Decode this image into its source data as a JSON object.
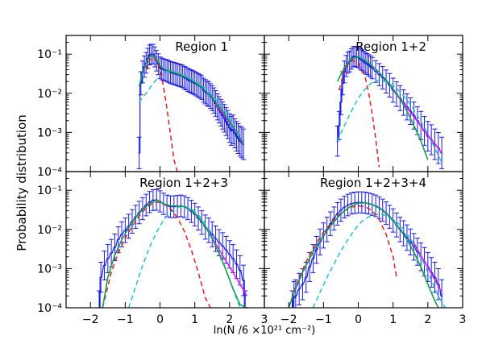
{
  "figure": {
    "ylabel": "Probability distribution",
    "xlabel": "ln(N /6 ×10²¹ cm⁻²)"
  },
  "chart_data": {
    "type": "line",
    "y_scale": "log",
    "ylim": [
      0.0001,
      0.3
    ],
    "y_ticks": [
      0.0001,
      0.001,
      0.01,
      0.1
    ],
    "y_tick_labels": [
      "10⁻⁴",
      "10⁻³",
      "10⁻²",
      "10⁻¹"
    ],
    "xlim": [
      -2.7,
      3.0
    ],
    "x_ticks": [
      -2,
      -1,
      0,
      1,
      2,
      3
    ],
    "x_tick_labels": [
      "−2",
      "−1",
      "0",
      "1",
      "2",
      "3"
    ],
    "colors": {
      "histogram": "#1a1ae6",
      "total": "#10a050",
      "lognormal": "#e02020",
      "second": "#20c0c8",
      "powerlaw": "#e020e0"
    },
    "panels": [
      {
        "title": "Region 1",
        "hist": {
          "x": [
            -0.6,
            -0.55,
            -0.5,
            -0.45,
            -0.4,
            -0.35,
            -0.3,
            -0.25,
            -0.2,
            -0.15,
            -0.1,
            -0.05,
            0.0,
            0.05,
            0.1,
            0.15,
            0.2,
            0.25,
            0.3,
            0.35,
            0.4,
            0.45,
            0.5,
            0.55,
            0.6,
            0.65,
            0.7,
            0.75,
            0.8,
            0.85,
            0.9,
            0.95,
            1.0,
            1.05,
            1.1,
            1.15,
            1.2,
            1.25,
            1.3,
            1.35,
            1.4,
            1.45,
            1.5,
            1.55,
            1.6,
            1.65,
            1.7,
            1.75,
            1.8,
            1.85,
            1.9,
            1.95,
            2.0,
            2.05,
            2.1,
            2.15,
            2.2,
            2.25,
            2.3,
            2.35,
            2.4
          ],
          "y": [
            0.0003,
            0.018,
            0.035,
            0.048,
            0.06,
            0.078,
            0.095,
            0.1,
            0.1,
            0.085,
            0.068,
            0.055,
            0.045,
            0.042,
            0.04,
            0.039,
            0.038,
            0.036,
            0.034,
            0.033,
            0.032,
            0.031,
            0.03,
            0.029,
            0.028,
            0.027,
            0.025,
            0.024,
            0.022,
            0.021,
            0.02,
            0.019,
            0.018,
            0.017,
            0.016,
            0.015,
            0.014,
            0.012,
            0.011,
            0.01,
            0.0095,
            0.0085,
            0.0075,
            0.0065,
            0.0055,
            0.0045,
            0.0038,
            0.0032,
            0.0027,
            0.0023,
            0.0019,
            0.0016,
            0.0013,
            0.0011,
            0.0012,
            0.00095,
            0.0008,
            0.0007,
            0.0006,
            0.00055,
            0.0005
          ]
        },
        "fits": {
          "total": {
            "x": [
              -0.6,
              -0.5,
              -0.4,
              -0.3,
              -0.2,
              -0.1,
              0.0,
              0.1,
              0.2,
              0.4,
              0.6,
              0.8,
              1.0,
              1.2,
              1.4,
              1.6,
              1.8,
              2.0,
              2.2,
              2.4
            ],
            "y": [
              0.015,
              0.032,
              0.06,
              0.085,
              0.092,
              0.075,
              0.052,
              0.042,
              0.039,
              0.034,
              0.029,
              0.024,
              0.019,
              0.014,
              0.0095,
              0.006,
              0.0035,
              0.0019,
              0.001,
              0.0005
            ]
          },
          "lognormal": {
            "x": [
              -0.4,
              -0.3,
              -0.2,
              -0.1,
              0.0,
              0.1,
              0.2,
              0.3,
              0.4,
              0.5
            ],
            "y": [
              0.04,
              0.07,
              0.085,
              0.07,
              0.04,
              0.015,
              0.004,
              0.0009,
              0.0002,
              0.0001
            ]
          },
          "second": {
            "x": [
              -0.6,
              -0.4,
              -0.2,
              0.0,
              0.2,
              0.4,
              0.6,
              0.8,
              1.0,
              1.2,
              1.4,
              1.6,
              1.8,
              2.0,
              2.2,
              2.4
            ],
            "y": [
              0.006,
              0.01,
              0.018,
              0.028,
              0.035,
              0.035,
              0.031,
              0.026,
              0.021,
              0.016,
              0.011,
              0.007,
              0.0042,
              0.0022,
              0.0011,
              0.0005
            ]
          },
          "powerlaw": {
            "x": [
              1.6,
              2.4
            ],
            "y": [
              0.0055,
              0.00055
            ]
          }
        }
      },
      {
        "title": "Region 1+2",
        "hist": {
          "x": [
            -0.6,
            -0.55,
            -0.5,
            -0.45,
            -0.4,
            -0.35,
            -0.3,
            -0.25,
            -0.2,
            -0.15,
            -0.1,
            -0.05,
            0.0,
            0.05,
            0.1,
            0.15,
            0.2,
            0.25,
            0.3,
            0.35,
            0.4,
            0.5,
            0.6,
            0.7,
            0.8,
            0.9,
            1.0,
            1.1,
            1.2,
            1.3,
            1.4,
            1.5,
            1.6,
            1.7,
            1.8,
            1.9,
            2.0,
            2.1,
            2.2,
            2.3,
            2.4
          ],
          "y": [
            0.0006,
            0.0015,
            0.006,
            0.018,
            0.035,
            0.05,
            0.06,
            0.065,
            0.075,
            0.085,
            0.088,
            0.085,
            0.082,
            0.075,
            0.07,
            0.065,
            0.06,
            0.056,
            0.052,
            0.048,
            0.044,
            0.036,
            0.03,
            0.025,
            0.02,
            0.016,
            0.012,
            0.0095,
            0.0075,
            0.0058,
            0.0045,
            0.0035,
            0.0027,
            0.002,
            0.0015,
            0.0011,
            0.0008,
            0.00065,
            0.0005,
            0.0004,
            0.0003
          ]
        },
        "fits": {
          "total": {
            "x": [
              -0.6,
              -0.4,
              -0.2,
              0.0,
              0.2,
              0.4,
              0.6,
              0.8,
              1.0,
              1.2,
              1.4,
              1.6,
              1.8,
              2.0
            ],
            "y": [
              0.02,
              0.045,
              0.078,
              0.085,
              0.068,
              0.05,
              0.034,
              0.022,
              0.013,
              0.0072,
              0.0035,
              0.0015,
              0.0006,
              0.0002
            ]
          },
          "lognormal": {
            "x": [
              -0.55,
              -0.4,
              -0.2,
              0.0,
              0.2,
              0.3,
              0.4,
              0.5,
              0.6
            ],
            "y": [
              0.012,
              0.04,
              0.07,
              0.06,
              0.025,
              0.01,
              0.003,
              0.0007,
              0.00013
            ]
          },
          "second": {
            "x": [
              -0.6,
              -0.4,
              -0.2,
              0.0,
              0.2,
              0.4,
              0.6,
              0.8,
              1.0,
              1.2,
              1.4,
              1.6,
              1.8,
              2.0,
              2.2,
              2.4
            ],
            "y": [
              0.0006,
              0.0015,
              0.0035,
              0.0075,
              0.013,
              0.019,
              0.022,
              0.02,
              0.016,
              0.011,
              0.0068,
              0.0038,
              0.0019,
              0.0009,
              0.0004,
              0.00017
            ]
          },
          "powerlaw": {
            "x": [
              1.0,
              2.4
            ],
            "y": [
              0.012,
              0.0003
            ]
          }
        }
      },
      {
        "title": "Region 1+2+3",
        "hist": {
          "x": [
            -1.75,
            -1.7,
            -1.6,
            -1.5,
            -1.4,
            -1.3,
            -1.2,
            -1.1,
            -1.0,
            -0.9,
            -0.8,
            -0.7,
            -0.6,
            -0.5,
            -0.4,
            -0.3,
            -0.2,
            -0.1,
            0.0,
            0.1,
            0.2,
            0.3,
            0.4,
            0.5,
            0.6,
            0.7,
            0.8,
            0.9,
            1.0,
            1.1,
            1.2,
            1.3,
            1.4,
            1.5,
            1.6,
            1.7,
            1.8,
            1.9,
            2.0,
            2.1,
            2.2,
            2.3,
            2.4,
            2.45
          ],
          "y": [
            0.0001,
            0.0006,
            0.0012,
            0.0018,
            0.0025,
            0.0035,
            0.0055,
            0.0075,
            0.0095,
            0.012,
            0.016,
            0.021,
            0.027,
            0.034,
            0.042,
            0.05,
            0.056,
            0.057,
            0.052,
            0.045,
            0.04,
            0.038,
            0.038,
            0.039,
            0.04,
            0.038,
            0.034,
            0.029,
            0.024,
            0.019,
            0.015,
            0.0115,
            0.0095,
            0.0075,
            0.0058,
            0.0046,
            0.0038,
            0.003,
            0.0023,
            0.0018,
            0.0013,
            0.0009,
            0.0005,
            0.0001
          ]
        },
        "fits": {
          "total": {
            "x": [
              -1.65,
              -1.5,
              -1.3,
              -1.1,
              -0.9,
              -0.7,
              -0.5,
              -0.3,
              -0.1,
              0.1,
              0.3,
              0.5,
              0.7,
              0.9,
              1.1,
              1.3,
              1.5,
              1.7,
              1.9,
              2.1,
              2.3,
              2.5
            ],
            "y": [
              0.0001,
              0.0006,
              0.0022,
              0.0055,
              0.011,
              0.02,
              0.032,
              0.046,
              0.056,
              0.046,
              0.04,
              0.04,
              0.038,
              0.031,
              0.021,
              0.012,
              0.0058,
              0.0024,
              0.0009,
              0.0003,
              0.00012,
              0.0001
            ]
          },
          "lognormal": {
            "x": [
              -1.65,
              -1.4,
              -1.2,
              -1.0,
              -0.8,
              -0.6,
              -0.4,
              -0.2,
              -0.05,
              0.1,
              0.3,
              0.5,
              0.7,
              0.9,
              1.1,
              1.3,
              1.45
            ],
            "y": [
              0.0001,
              0.0008,
              0.0025,
              0.006,
              0.012,
              0.022,
              0.035,
              0.047,
              0.05,
              0.046,
              0.034,
              0.02,
              0.009,
              0.003,
              0.0008,
              0.00018,
              0.0001
            ]
          },
          "second": {
            "x": [
              -0.9,
              -0.7,
              -0.5,
              -0.3,
              -0.1,
              0.1,
              0.3,
              0.5,
              0.7,
              0.9,
              1.1,
              1.3,
              1.5,
              1.7,
              1.9,
              2.1,
              2.3,
              2.5
            ],
            "y": [
              0.0001,
              0.00035,
              0.0012,
              0.0035,
              0.0085,
              0.017,
              0.028,
              0.037,
              0.039,
              0.034,
              0.024,
              0.014,
              0.0065,
              0.0026,
              0.0009,
              0.0003,
              0.0001,
              0.0001
            ]
          },
          "powerlaw": {
            "x": [
              1.3,
              2.5
            ],
            "y": [
              0.012,
              0.0002
            ]
          }
        }
      },
      {
        "title": "Region 1+2+3+4",
        "hist": {
          "x": [
            -1.9,
            -1.85,
            -1.8,
            -1.7,
            -1.6,
            -1.5,
            -1.4,
            -1.3,
            -1.2,
            -1.1,
            -1.0,
            -0.9,
            -0.8,
            -0.7,
            -0.6,
            -0.5,
            -0.4,
            -0.3,
            -0.2,
            -0.1,
            0.0,
            0.1,
            0.2,
            0.3,
            0.4,
            0.5,
            0.6,
            0.7,
            0.8,
            0.9,
            1.0,
            1.1,
            1.2,
            1.3,
            1.4,
            1.5,
            1.6,
            1.7,
            1.8,
            1.9,
            2.0,
            2.1,
            2.2,
            2.3,
            2.4
          ],
          "y": [
            0.0001,
            0.00018,
            0.0002,
            0.0003,
            0.0004,
            0.0006,
            0.0011,
            0.0018,
            0.003,
            0.0048,
            0.007,
            0.01,
            0.014,
            0.019,
            0.025,
            0.031,
            0.037,
            0.042,
            0.046,
            0.048,
            0.049,
            0.049,
            0.048,
            0.046,
            0.043,
            0.04,
            0.036,
            0.031,
            0.026,
            0.021,
            0.017,
            0.013,
            0.01,
            0.008,
            0.0062,
            0.0048,
            0.0036,
            0.0027,
            0.002,
            0.0015,
            0.0011,
            0.0008,
            0.0006,
            0.0004,
            0.0002
          ]
        },
        "fits": {
          "total": {
            "x": [
              -2.0,
              -1.8,
              -1.6,
              -1.4,
              -1.2,
              -1.0,
              -0.8,
              -0.6,
              -0.4,
              -0.2,
              0.0,
              0.2,
              0.4,
              0.6,
              0.8,
              1.0,
              1.2,
              1.4,
              1.6,
              1.8,
              2.0,
              2.2,
              2.3
            ],
            "y": [
              0.0001,
              0.0003,
              0.0008,
              0.0018,
              0.0038,
              0.007,
              0.012,
              0.02,
              0.03,
              0.04,
              0.047,
              0.048,
              0.043,
              0.035,
              0.026,
              0.017,
              0.01,
              0.0055,
              0.0026,
              0.0011,
              0.0004,
              0.00015,
              0.0001
            ]
          },
          "lognormal": {
            "x": [
              -2.0,
              -1.8,
              -1.5,
              -1.2,
              -1.0,
              -0.8,
              -0.6,
              -0.4,
              -0.2,
              0.0,
              0.2,
              0.4,
              0.6,
              0.8,
              1.0,
              1.1
            ],
            "y": [
              0.0001,
              0.00035,
              0.0015,
              0.0045,
              0.0085,
              0.014,
              0.022,
              0.03,
              0.037,
              0.04,
              0.038,
              0.03,
              0.018,
              0.0075,
              0.002,
              0.0006
            ]
          },
          "second": {
            "x": [
              -1.3,
              -1.1,
              -0.9,
              -0.7,
              -0.5,
              -0.3,
              -0.1,
              0.1,
              0.3,
              0.5,
              0.7,
              0.9,
              1.1,
              1.3,
              1.5,
              1.7,
              1.9,
              2.1,
              2.3,
              2.5
            ],
            "y": [
              0.0001,
              0.00025,
              0.0006,
              0.0013,
              0.0028,
              0.0055,
              0.01,
              0.016,
              0.021,
              0.024,
              0.024,
              0.021,
              0.016,
              0.01,
              0.0058,
              0.0029,
              0.0013,
              0.0005,
              0.0002,
              0.0001
            ]
          },
          "powerlaw": {
            "x": [
              1.6,
              2.4
            ],
            "y": [
              0.0045,
              0.00025
            ]
          }
        }
      }
    ]
  }
}
